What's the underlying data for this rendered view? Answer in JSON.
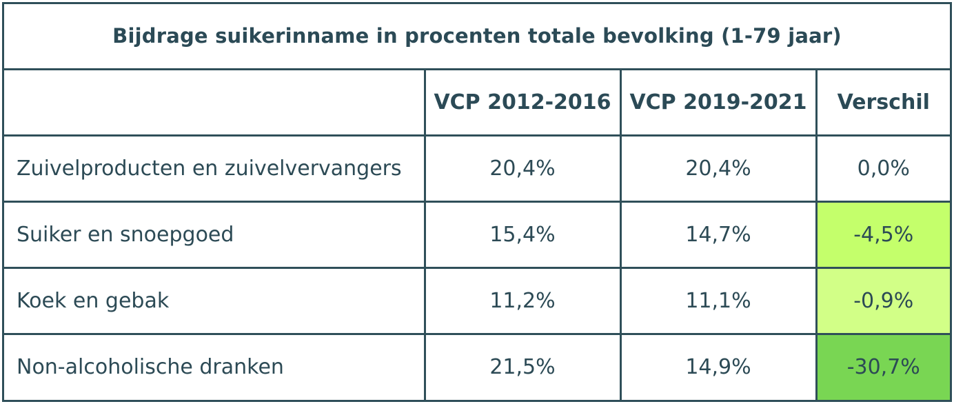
{
  "table": {
    "title": "Bijdrage suikerinname in procenten totale bevolking (1-79 jaar)",
    "headers": [
      "",
      "VCP 2012-2016",
      "VCP 2019-2021",
      "Verschil"
    ],
    "rows": [
      {
        "label": "Zuivelproducten en zuivelvervangers",
        "vcp_2012_2016": "20,4%",
        "vcp_2019_2021": "20,4%",
        "verschil": "0,0%",
        "verschil_color": "#ffffff"
      },
      {
        "label": "Suiker en snoepgoed",
        "vcp_2012_2016": "15,4%",
        "vcp_2019_2021": "14,7%",
        "verschil": "-4,5%",
        "verschil_color": "#c4ff6b"
      },
      {
        "label": "Koek en gebak",
        "vcp_2012_2016": "11,2%",
        "vcp_2019_2021": "11,1%",
        "verschil": "-0,9%",
        "verschil_color": "#d2ff87"
      },
      {
        "label": "Non-alcoholische dranken",
        "vcp_2012_2016": "21,5%",
        "vcp_2019_2021": "14,9%",
        "verschil": "-30,7%",
        "verschil_color": "#79d653"
      }
    ]
  },
  "colors": {
    "border": "#2f4f59",
    "text": "#2c4a55"
  }
}
